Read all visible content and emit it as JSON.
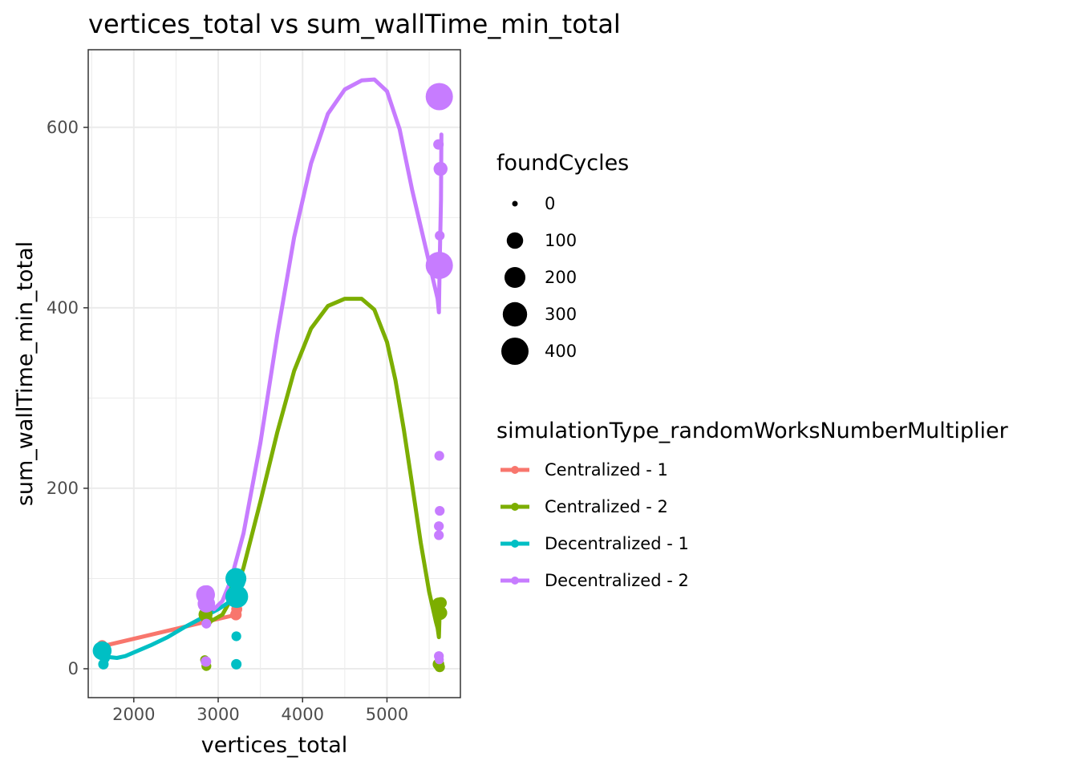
{
  "chart_data": {
    "type": "scatter",
    "title": "vertices_total  vs  sum_wallTime_min_total",
    "xlabel": "vertices_total",
    "ylabel": "sum_wallTime_min_total",
    "xlim": [
      1460,
      5870
    ],
    "ylim": [
      -32,
      686
    ],
    "x_ticks": [
      2000,
      3000,
      4000,
      5000
    ],
    "y_ticks": [
      0,
      200,
      400,
      600
    ],
    "x_tick_labels": [
      "2000",
      "3000",
      "4000",
      "5000"
    ],
    "y_tick_labels": [
      "0",
      "200",
      "400",
      "600"
    ],
    "grid": true,
    "legend_placement": "right",
    "size_legend": {
      "title": "foundCycles",
      "values": [
        0,
        100,
        200,
        300,
        400
      ],
      "labels": [
        "0",
        "100",
        "200",
        "300",
        "400"
      ]
    },
    "color_legend": {
      "title": "simulationType_randomWorksNumberMultiplier"
    },
    "series": [
      {
        "name": "Centralized - 1",
        "color": "#F8766D",
        "points": [
          {
            "x": 1625,
            "y": 26,
            "cycles": 20
          },
          {
            "x": 1640,
            "y": 22,
            "cycles": 15
          },
          {
            "x": 2850,
            "y": 52,
            "cycles": 10
          },
          {
            "x": 3210,
            "y": 60,
            "cycles": 30
          },
          {
            "x": 3220,
            "y": 66,
            "cycles": 25
          }
        ],
        "trend": [
          {
            "x": 1625,
            "y": 25
          },
          {
            "x": 2850,
            "y": 52
          },
          {
            "x": 3220,
            "y": 60
          }
        ]
      },
      {
        "name": "Centralized - 2",
        "color": "#7CAE00",
        "points": [
          {
            "x": 2840,
            "y": 10,
            "cycles": 10
          },
          {
            "x": 2860,
            "y": 3,
            "cycles": 15
          },
          {
            "x": 2850,
            "y": 60,
            "cycles": 60
          },
          {
            "x": 2870,
            "y": 54,
            "cycles": 30
          },
          {
            "x": 3215,
            "y": 88,
            "cycles": 70
          },
          {
            "x": 3225,
            "y": 95,
            "cycles": 60
          },
          {
            "x": 5610,
            "y": 72,
            "cycles": 40
          },
          {
            "x": 5640,
            "y": 73,
            "cycles": 30
          },
          {
            "x": 5625,
            "y": 62,
            "cycles": 70
          },
          {
            "x": 5640,
            "y": 62,
            "cycles": 40
          },
          {
            "x": 5610,
            "y": 5,
            "cycles": 30
          },
          {
            "x": 5625,
            "y": 2,
            "cycles": 20
          }
        ],
        "trend": [
          {
            "x": 2850,
            "y": 56
          },
          {
            "x": 2900,
            "y": 52
          },
          {
            "x": 3050,
            "y": 60
          },
          {
            "x": 3200,
            "y": 85
          },
          {
            "x": 3300,
            "y": 112
          },
          {
            "x": 3500,
            "y": 185
          },
          {
            "x": 3700,
            "y": 262
          },
          {
            "x": 3900,
            "y": 330
          },
          {
            "x": 4100,
            "y": 377
          },
          {
            "x": 4300,
            "y": 402
          },
          {
            "x": 4500,
            "y": 410
          },
          {
            "x": 4700,
            "y": 410
          },
          {
            "x": 4850,
            "y": 398
          },
          {
            "x": 5000,
            "y": 362
          },
          {
            "x": 5100,
            "y": 320
          },
          {
            "x": 5200,
            "y": 265
          },
          {
            "x": 5300,
            "y": 203
          },
          {
            "x": 5400,
            "y": 140
          },
          {
            "x": 5500,
            "y": 85
          },
          {
            "x": 5580,
            "y": 52
          },
          {
            "x": 5600,
            "y": 45
          },
          {
            "x": 5615,
            "y": 35
          },
          {
            "x": 5625,
            "y": 65
          },
          {
            "x": 5640,
            "y": 72
          }
        ]
      },
      {
        "name": "Decentralized - 1",
        "color": "#00BFC4",
        "points": [
          {
            "x": 1625,
            "y": 20,
            "cycles": 150
          },
          {
            "x": 1640,
            "y": 5,
            "cycles": 20
          },
          {
            "x": 1655,
            "y": 12,
            "cycles": 20
          },
          {
            "x": 3215,
            "y": 36,
            "cycles": 15
          },
          {
            "x": 3215,
            "y": 5,
            "cycles": 20
          },
          {
            "x": 3210,
            "y": 100,
            "cycles": 200
          },
          {
            "x": 3220,
            "y": 80,
            "cycles": 250
          },
          {
            "x": 3230,
            "y": 96,
            "cycles": 80
          }
        ],
        "trend": [
          {
            "x": 1630,
            "y": 20
          },
          {
            "x": 1660,
            "y": 15
          },
          {
            "x": 1700,
            "y": 13
          },
          {
            "x": 1800,
            "y": 12
          },
          {
            "x": 1900,
            "y": 14
          },
          {
            "x": 2000,
            "y": 18
          },
          {
            "x": 2200,
            "y": 26
          },
          {
            "x": 2400,
            "y": 35
          },
          {
            "x": 2600,
            "y": 46
          },
          {
            "x": 2800,
            "y": 56
          },
          {
            "x": 3000,
            "y": 66
          },
          {
            "x": 3100,
            "y": 72
          },
          {
            "x": 3200,
            "y": 80
          },
          {
            "x": 3230,
            "y": 86
          }
        ]
      },
      {
        "name": "Decentralized - 2",
        "color": "#C77CFF",
        "points": [
          {
            "x": 2850,
            "y": 82,
            "cycles": 150
          },
          {
            "x": 2860,
            "y": 72,
            "cycles": 120
          },
          {
            "x": 2865,
            "y": 84,
            "cycles": 80
          },
          {
            "x": 2855,
            "y": 8,
            "cycles": 20
          },
          {
            "x": 2860,
            "y": 50,
            "cycles": 15
          },
          {
            "x": 5620,
            "y": 634,
            "cycles": 400
          },
          {
            "x": 5610,
            "y": 581,
            "cycles": 20
          },
          {
            "x": 5635,
            "y": 554,
            "cycles": 60
          },
          {
            "x": 5625,
            "y": 480,
            "cycles": 15
          },
          {
            "x": 5620,
            "y": 447,
            "cycles": 400
          },
          {
            "x": 5620,
            "y": 236,
            "cycles": 15
          },
          {
            "x": 5625,
            "y": 175,
            "cycles": 15
          },
          {
            "x": 5615,
            "y": 158,
            "cycles": 15
          },
          {
            "x": 5615,
            "y": 148,
            "cycles": 15
          },
          {
            "x": 5615,
            "y": 14,
            "cycles": 15
          },
          {
            "x": 5620,
            "y": 10,
            "cycles": 10
          }
        ],
        "trend": [
          {
            "x": 2850,
            "y": 75
          },
          {
            "x": 2950,
            "y": 66
          },
          {
            "x": 3050,
            "y": 75
          },
          {
            "x": 3150,
            "y": 98
          },
          {
            "x": 3300,
            "y": 150
          },
          {
            "x": 3500,
            "y": 250
          },
          {
            "x": 3700,
            "y": 370
          },
          {
            "x": 3900,
            "y": 478
          },
          {
            "x": 4100,
            "y": 560
          },
          {
            "x": 4300,
            "y": 615
          },
          {
            "x": 4500,
            "y": 642
          },
          {
            "x": 4700,
            "y": 652
          },
          {
            "x": 4850,
            "y": 653
          },
          {
            "x": 5000,
            "y": 640
          },
          {
            "x": 5150,
            "y": 598
          },
          {
            "x": 5300,
            "y": 530
          },
          {
            "x": 5450,
            "y": 470
          },
          {
            "x": 5550,
            "y": 430
          },
          {
            "x": 5600,
            "y": 410
          },
          {
            "x": 5615,
            "y": 395
          },
          {
            "x": 5625,
            "y": 450
          },
          {
            "x": 5640,
            "y": 520
          },
          {
            "x": 5645,
            "y": 592
          }
        ]
      }
    ]
  }
}
